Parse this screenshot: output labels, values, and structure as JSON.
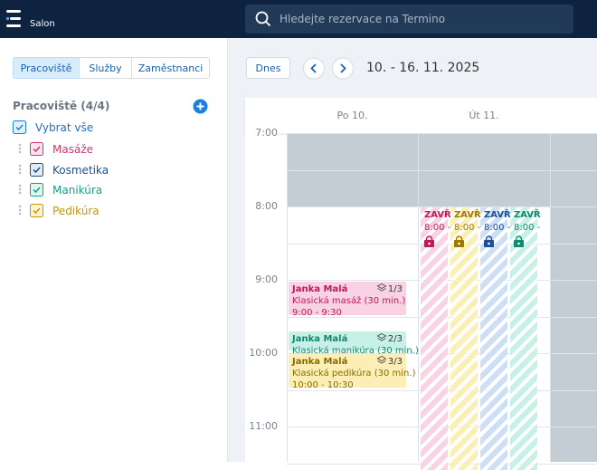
{
  "header": {
    "brand": "Salon",
    "search_placeholder": "Hledejte rezervace na Termino"
  },
  "sidebar": {
    "tabs": [
      "Pracoviště",
      "Služby",
      "Zaměstnanci"
    ],
    "section_title": "Pracoviště (4/4)",
    "select_all": "Vybrat vše",
    "workplaces": [
      "Masáže",
      "Kosmetika",
      "Manikúra",
      "Pedikúra"
    ]
  },
  "toolbar": {
    "today": "Dnes",
    "date_range": "10. - 16. 11. 2025"
  },
  "calendar": {
    "days": [
      "Po 10.",
      "Út 11."
    ],
    "hours": [
      "7:00",
      "8:00",
      "9:00",
      "10:00",
      "11:00"
    ],
    "closed_blocks": [
      {
        "title": "ZAVŘ",
        "time": "8:00 -"
      },
      {
        "title": "ZAVŘ",
        "time": "8:00 -"
      },
      {
        "title": "ZAVŘ",
        "time": "8:00 -"
      },
      {
        "title": "ZAVŘ",
        "time": "8:00 -"
      }
    ],
    "events": [
      {
        "client": "Janka Malá",
        "count": "1/3",
        "service": "Klasická masáž (30 min.)",
        "time": "9:00 - 9:30"
      },
      {
        "client": "Janka Malá",
        "count": "2/3",
        "service": "Klasická manikúra (30 min.)"
      },
      {
        "client": "Janka Malá",
        "count": "3/3",
        "service": "Klasická pedikúra (30 min.)",
        "time": "10:00 - 10:30"
      }
    ]
  }
}
